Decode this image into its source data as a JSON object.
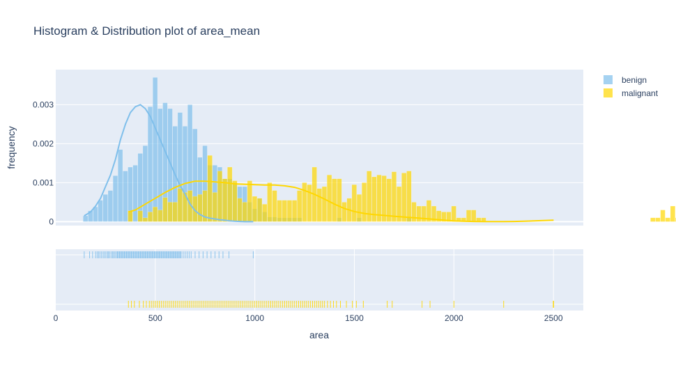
{
  "chart_data": {
    "type": "histogram",
    "title": "Histogram & Distribution plot of area_mean",
    "xlabel": "area",
    "ylabel": "frequency",
    "xlim": [
      0,
      2650
    ],
    "ylim": [
      -0.0001,
      0.0039
    ],
    "x_ticks": [
      0,
      500,
      1000,
      1500,
      2000,
      2500
    ],
    "x_tick_labels": [
      "0",
      "500",
      "1000",
      "1500",
      "2000",
      "2500"
    ],
    "y_ticks": [
      0,
      0.001,
      0.002,
      0.003
    ],
    "y_tick_labels": [
      "0",
      "0.001",
      "0.002",
      "0.003"
    ],
    "bin_width": 25,
    "legend_position": "top-right",
    "series": [
      {
        "name": "benign",
        "color": "#7fbfeb",
        "hist_start": 137.5,
        "hist_values": [
          0.00015,
          0.00028,
          0.00038,
          0.00055,
          0.0007,
          0.0008,
          0.00118,
          0.00185,
          0.0013,
          0.0014,
          0.00145,
          0.00175,
          0.00195,
          0.00295,
          0.0037,
          0.0029,
          0.00305,
          0.0029,
          0.00245,
          0.0028,
          0.00245,
          0.003,
          0.00238,
          0.00165,
          0.00195,
          0.00145,
          0.00145,
          0.0014,
          0.0011,
          0.0011,
          0.001,
          0.0009,
          0.0009,
          0.0005,
          0.00033,
          0.0006,
          0.00025,
          0.00012,
          0.00012,
          0.0001,
          0.0001,
          0.0001,
          0.0001,
          0.0001,
          0,
          0,
          0,
          0,
          0,
          0,
          0,
          0.0001,
          0,
          0,
          0,
          0.0001,
          0,
          0,
          0,
          0,
          0,
          0,
          0,
          0,
          0,
          0.0001,
          0,
          0,
          0,
          0,
          0,
          0,
          0,
          0,
          0,
          0,
          0,
          0,
          0,
          0,
          0,
          0,
          0,
          0,
          0,
          0,
          0,
          0,
          0,
          0,
          0,
          0,
          0,
          0,
          0,
          0,
          0,
          0,
          0,
          0,
          0,
          0,
          0,
          0,
          0,
          0,
          0,
          0,
          0,
          0,
          0,
          0,
          0,
          0,
          0,
          0,
          0,
          0,
          0,
          0,
          0,
          0,
          0,
          0,
          0,
          0,
          0,
          0,
          0,
          0,
          0,
          0,
          0,
          0,
          0,
          0,
          0,
          0,
          0,
          0,
          0,
          0,
          0,
          0,
          0,
          0,
          0,
          0,
          0,
          0,
          0,
          0,
          0,
          0,
          0,
          0,
          0,
          0,
          0,
          0
        ],
        "kde_x": [
          143,
          175,
          200,
          225,
          250,
          275,
          300,
          325,
          350,
          375,
          400,
          425,
          450,
          475,
          500,
          525,
          550,
          575,
          600,
          625,
          650,
          675,
          700,
          725,
          750,
          775,
          800,
          825,
          850,
          875,
          900,
          925,
          950,
          975,
          992
        ],
        "kde_y": [
          0.00015,
          0.00025,
          0.0004,
          0.0006,
          0.0009,
          0.0012,
          0.0016,
          0.0021,
          0.0025,
          0.0028,
          0.00295,
          0.003,
          0.0029,
          0.0027,
          0.0024,
          0.0021,
          0.0018,
          0.0015,
          0.0012,
          0.00093,
          0.0007,
          0.00045,
          0.00028,
          0.00018,
          0.00012,
          9e-05,
          7e-05,
          5e-05,
          4e-05,
          2e-05,
          1e-05,
          5e-06,
          0,
          0,
          0
        ],
        "rug": [
          143,
          170,
          185,
          200,
          208,
          215,
          222,
          230,
          238,
          245,
          252,
          260,
          265,
          272,
          280,
          286,
          292,
          298,
          305,
          310,
          315,
          320,
          325,
          330,
          335,
          340,
          345,
          350,
          355,
          360,
          365,
          370,
          375,
          380,
          385,
          390,
          395,
          400,
          405,
          410,
          415,
          420,
          425,
          430,
          435,
          440,
          445,
          450,
          455,
          460,
          465,
          470,
          475,
          480,
          485,
          490,
          495,
          500,
          505,
          510,
          515,
          520,
          525,
          530,
          535,
          540,
          545,
          550,
          555,
          560,
          565,
          570,
          575,
          580,
          585,
          590,
          595,
          600,
          605,
          610,
          615,
          620,
          625,
          630,
          640,
          650,
          660,
          670,
          680,
          700,
          720,
          740,
          760,
          780,
          800,
          820,
          840,
          870,
          992
        ]
      },
      {
        "name": "malignant",
        "color": "#ffd700",
        "hist_start": 362.5,
        "hist_values": [
          0.00028,
          0,
          0.00028,
          0.0001,
          0.00025,
          0.00038,
          0.0003,
          0.00062,
          0.0005,
          0.0005,
          0.00085,
          0.00075,
          0.0008,
          0.00065,
          0.0007,
          0.0008,
          0.0017,
          0.00075,
          0.0013,
          0.0011,
          0.0014,
          0.00105,
          0.0006,
          0.0005,
          0.00105,
          0.00065,
          0.0006,
          0.00045,
          0.001,
          0.0008,
          0.00055,
          0.00055,
          0.00055,
          0.00055,
          0.0008,
          0.001,
          0.00095,
          0.0014,
          0.00085,
          0.0009,
          0.0012,
          0.0011,
          0.0011,
          0.0005,
          0.0006,
          0.00095,
          0.0007,
          0.001,
          0.0013,
          0.00115,
          0.0012,
          0.00118,
          0.0011,
          0.00128,
          0.0009,
          0.00125,
          0.0013,
          0.0005,
          0.0004,
          0.0004,
          0.00055,
          0.0004,
          0.00028,
          0.00025,
          0.00025,
          0.0004,
          0.0001,
          0.0001,
          0.0003,
          0.0003,
          0.0001,
          0.0001,
          0,
          0,
          0,
          0,
          0,
          0,
          0,
          0,
          0,
          0,
          0,
          0,
          0,
          0,
          0,
          0,
          0,
          0,
          0,
          0,
          0,
          0,
          0,
          0,
          0,
          0,
          0,
          0,
          0,
          0,
          0,
          0,
          0,
          0.0001,
          0.0001,
          0.0003,
          0.0001,
          0.0004,
          0.0001,
          0.0001,
          0.0001,
          0,
          0.0003,
          0.0001,
          0,
          0.0001,
          0.0001,
          0,
          0.0001,
          0,
          0.0001,
          0,
          0,
          0,
          0,
          0,
          0,
          0,
          0,
          0,
          0,
          0,
          0.0001,
          0,
          0,
          0,
          0,
          0,
          0,
          0,
          0,
          0,
          0,
          0,
          0,
          0,
          0,
          0,
          0,
          0,
          0,
          0,
          0,
          0,
          0,
          0,
          0.0001,
          0,
          0,
          0,
          0,
          0,
          0,
          0,
          0,
          0,
          0,
          0,
          0.0001,
          0,
          0,
          0,
          0,
          0,
          0,
          0,
          0,
          0,
          0,
          0,
          0,
          0,
          0,
          0,
          0,
          0,
          0,
          0,
          0,
          0,
          0,
          0,
          0,
          0.0003
        ],
        "kde_x": [
          365,
          400,
          450,
          500,
          550,
          600,
          650,
          700,
          750,
          800,
          850,
          900,
          950,
          1000,
          1050,
          1100,
          1150,
          1200,
          1250,
          1300,
          1350,
          1400,
          1450,
          1500,
          1550,
          1600,
          1650,
          1700,
          1750,
          1800,
          1850,
          1900,
          1950,
          2000,
          2050,
          2100,
          2150,
          2200,
          2250,
          2300,
          2350,
          2400,
          2450,
          2501
        ],
        "kde_y": [
          0.00025,
          0.0003,
          0.00045,
          0.0006,
          0.00075,
          0.00088,
          0.00098,
          0.00104,
          0.00104,
          0.00102,
          0.001,
          0.00097,
          0.00096,
          0.00095,
          0.00094,
          0.00094,
          0.00092,
          0.00088,
          0.0008,
          0.0007,
          0.00058,
          0.00045,
          0.00034,
          0.00026,
          0.00021,
          0.00018,
          0.00016,
          0.00014,
          0.00012,
          0.0001,
          8e-05,
          6e-05,
          4e-05,
          2e-05,
          1e-05,
          5e-06,
          2e-06,
          1e-06,
          2e-06,
          5e-06,
          1e-05,
          2e-05,
          3e-05,
          4e-05
        ],
        "rug": [
          365,
          380,
          395,
          420,
          440,
          455,
          470,
          480,
          490,
          500,
          510,
          520,
          530,
          540,
          550,
          560,
          570,
          580,
          590,
          600,
          610,
          620,
          630,
          640,
          650,
          660,
          670,
          680,
          690,
          700,
          710,
          720,
          730,
          740,
          750,
          760,
          770,
          780,
          790,
          800,
          810,
          820,
          830,
          840,
          850,
          860,
          870,
          880,
          890,
          900,
          910,
          920,
          930,
          940,
          950,
          960,
          970,
          980,
          990,
          1000,
          1010,
          1020,
          1030,
          1040,
          1050,
          1060,
          1070,
          1080,
          1090,
          1100,
          1110,
          1120,
          1130,
          1140,
          1150,
          1160,
          1170,
          1180,
          1190,
          1200,
          1210,
          1220,
          1230,
          1240,
          1250,
          1260,
          1270,
          1280,
          1290,
          1300,
          1310,
          1320,
          1330,
          1340,
          1350,
          1365,
          1380,
          1395,
          1410,
          1430,
          1460,
          1490,
          1510,
          1545,
          1665,
          1690,
          1840,
          1880,
          2000,
          2250,
          2499,
          2501
        ]
      }
    ]
  }
}
